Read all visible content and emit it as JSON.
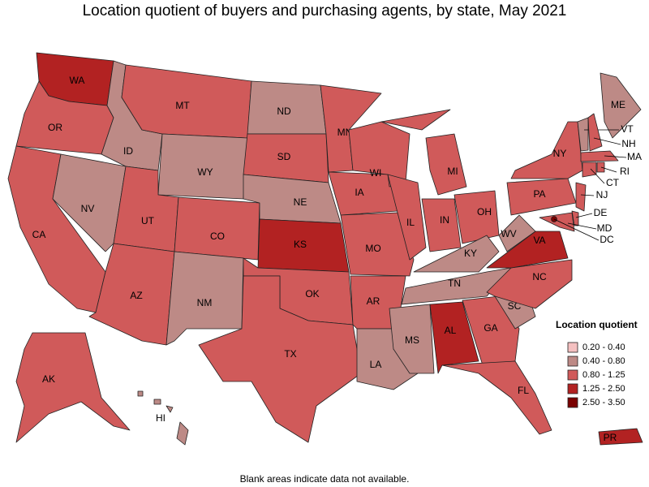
{
  "title": "Location quotient of buyers and purchasing agents, by state, May 2021",
  "states": [
    {
      "label": "WA",
      "color": "#b22222"
    },
    {
      "label": "OR",
      "color": "#d05a5a"
    },
    {
      "label": "CA",
      "color": "#d05a5a"
    },
    {
      "label": "NV",
      "color": "#bd8a86"
    },
    {
      "label": "ID",
      "color": "#bd8a86"
    },
    {
      "label": "MT",
      "color": "#d05a5a"
    },
    {
      "label": "WY",
      "color": "#bd8a86"
    },
    {
      "label": "UT",
      "color": "#d05a5a"
    },
    {
      "label": "CO",
      "color": "#d05a5a"
    },
    {
      "label": "AZ",
      "color": "#d05a5a"
    },
    {
      "label": "NM",
      "color": "#bd8a86"
    },
    {
      "label": "ND",
      "color": "#bd8a86"
    },
    {
      "label": "SD",
      "color": "#d05a5a"
    },
    {
      "label": "NE",
      "color": "#bd8a86"
    },
    {
      "label": "KS",
      "color": "#b22222"
    },
    {
      "label": "OK",
      "color": "#d05a5a"
    },
    {
      "label": "TX",
      "color": "#d05a5a"
    },
    {
      "label": "MN",
      "color": "#d05a5a"
    },
    {
      "label": "IA",
      "color": "#d05a5a"
    },
    {
      "label": "MO",
      "color": "#d05a5a"
    },
    {
      "label": "AR",
      "color": "#d05a5a"
    },
    {
      "label": "LA",
      "color": "#bd8a86"
    },
    {
      "label": "WI",
      "color": "#d05a5a"
    },
    {
      "label": "IL",
      "color": "#d05a5a"
    },
    {
      "label": "MI",
      "color": "#d05a5a"
    },
    {
      "label": "IN",
      "color": "#d05a5a"
    },
    {
      "label": "OH",
      "color": "#d05a5a"
    },
    {
      "label": "KY",
      "color": "#bd8a86"
    },
    {
      "label": "TN",
      "color": "#bd8a86"
    },
    {
      "label": "MS",
      "color": "#bd8a86"
    },
    {
      "label": "AL",
      "color": "#b22222"
    },
    {
      "label": "GA",
      "color": "#d05a5a"
    },
    {
      "label": "FL",
      "color": "#d05a5a"
    },
    {
      "label": "SC",
      "color": "#bd8a86"
    },
    {
      "label": "NC",
      "color": "#d05a5a"
    },
    {
      "label": "VA",
      "color": "#b22222"
    },
    {
      "label": "WV",
      "color": "#bd8a86"
    },
    {
      "label": "PA",
      "color": "#d05a5a"
    },
    {
      "label": "NY",
      "color": "#d05a5a"
    },
    {
      "label": "ME",
      "color": "#bd8a86"
    },
    {
      "label": "VT",
      "color": "#bd8a86"
    },
    {
      "label": "NH",
      "color": "#d05a5a"
    },
    {
      "label": "MA",
      "color": "#d05a5a"
    },
    {
      "label": "CT",
      "color": "#d05a5a"
    },
    {
      "label": "RI",
      "color": "#d05a5a"
    },
    {
      "label": "NJ",
      "color": "#d05a5a"
    },
    {
      "label": "DE",
      "color": "#d05a5a"
    },
    {
      "label": "MD",
      "color": "#d05a5a"
    },
    {
      "label": "DC",
      "color": "#7a0000"
    },
    {
      "label": "AK",
      "color": "#d05a5a"
    },
    {
      "label": "HI",
      "color": "#bd8a86"
    },
    {
      "label": "PR",
      "color": "#b22222"
    }
  ],
  "legend": {
    "title": "Location quotient",
    "items": [
      {
        "label": "0.20 - 0.40",
        "color": "#f4c0c0"
      },
      {
        "label": "0.40 - 0.80",
        "color": "#bd8a86"
      },
      {
        "label": "0.80 - 1.25",
        "color": "#d05a5a"
      },
      {
        "label": "1.25 - 2.50",
        "color": "#b22222"
      },
      {
        "label": "2.50 - 3.50",
        "color": "#7a0000"
      }
    ]
  },
  "note": "Blank areas indicate data not available."
}
